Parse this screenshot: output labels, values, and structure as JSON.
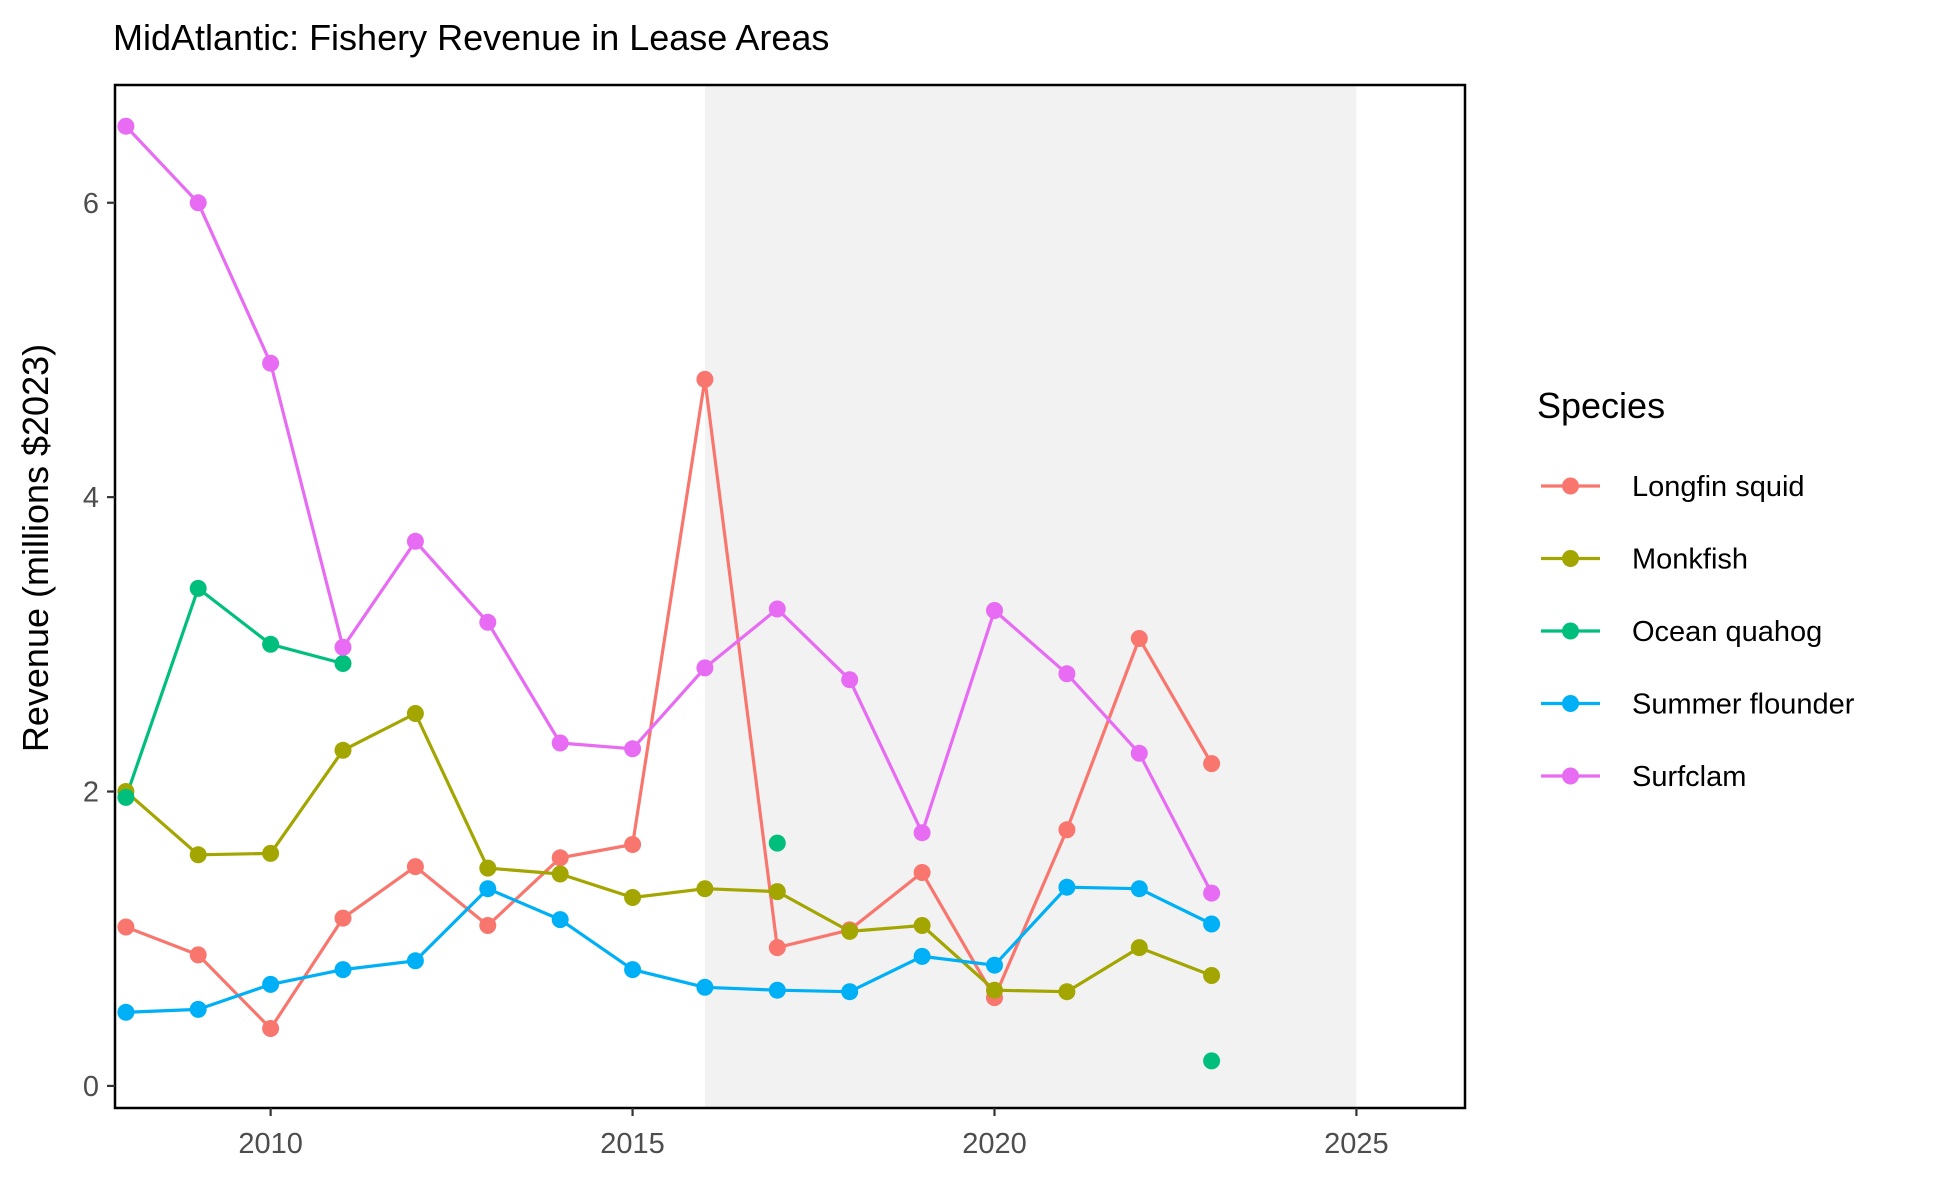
{
  "chart_data": {
    "type": "line",
    "title": "MidAtlantic: Fishery Revenue in Lease Areas",
    "xlabel": "",
    "ylabel": "Revenue (millions $2023)",
    "xlim": [
      2007.85,
      2026.5
    ],
    "ylim": [
      -0.15,
      6.8
    ],
    "x_ticks": [
      "2010",
      "2015",
      "2020",
      "2025"
    ],
    "y_ticks": [
      "0",
      "2",
      "4",
      "6"
    ],
    "grid": false,
    "shaded_region": {
      "x_start": 2016,
      "x_end": 2025,
      "color": "#f2f2f2"
    },
    "legend": {
      "title": "Species",
      "placement": "right"
    },
    "series": [
      {
        "name": "Longfin squid",
        "color": "#F8766D",
        "x": [
          2008,
          2009,
          2010,
          2011,
          2012,
          2013,
          2014,
          2015,
          2016,
          2017,
          2018,
          2019,
          2020,
          2021,
          2022,
          2023
        ],
        "values": [
          1.08,
          0.89,
          0.39,
          1.14,
          1.49,
          1.09,
          1.55,
          1.64,
          4.8,
          0.94,
          1.06,
          1.45,
          0.6,
          1.74,
          3.04,
          2.19
        ]
      },
      {
        "name": "Monkfish",
        "color": "#A3A500",
        "x": [
          2008,
          2009,
          2010,
          2011,
          2012,
          2013,
          2014,
          2015,
          2016,
          2017,
          2018,
          2019,
          2020,
          2021,
          2022,
          2023
        ],
        "values": [
          2.0,
          1.57,
          1.58,
          2.28,
          2.53,
          1.48,
          1.44,
          1.28,
          1.34,
          1.32,
          1.05,
          1.09,
          0.65,
          0.64,
          0.94,
          0.75
        ]
      },
      {
        "name": "Ocean quahog",
        "color": "#00BF7D",
        "x": [
          2008,
          2009,
          2010,
          2011,
          2017,
          2023
        ],
        "values": [
          1.96,
          3.38,
          3.0,
          2.87,
          1.65,
          0.17
        ],
        "line_breaks_after_index": [
          3,
          4
        ]
      },
      {
        "name": "Summer flounder",
        "color": "#00B0F6",
        "x": [
          2008,
          2009,
          2010,
          2011,
          2012,
          2013,
          2014,
          2015,
          2016,
          2017,
          2018,
          2019,
          2020,
          2021,
          2022,
          2023
        ],
        "values": [
          0.5,
          0.52,
          0.69,
          0.79,
          0.85,
          1.34,
          1.13,
          0.79,
          0.67,
          0.65,
          0.64,
          0.88,
          0.82,
          1.35,
          1.34,
          1.1
        ]
      },
      {
        "name": "Surfclam",
        "color": "#E76BF3",
        "x": [
          2008,
          2009,
          2010,
          2011,
          2012,
          2013,
          2014,
          2015,
          2016,
          2017,
          2018,
          2019,
          2020,
          2021,
          2022,
          2023
        ],
        "values": [
          6.52,
          6.0,
          4.91,
          2.98,
          3.7,
          3.15,
          2.33,
          2.29,
          2.84,
          3.24,
          2.76,
          1.72,
          3.23,
          2.8,
          2.26,
          1.31
        ]
      }
    ]
  }
}
